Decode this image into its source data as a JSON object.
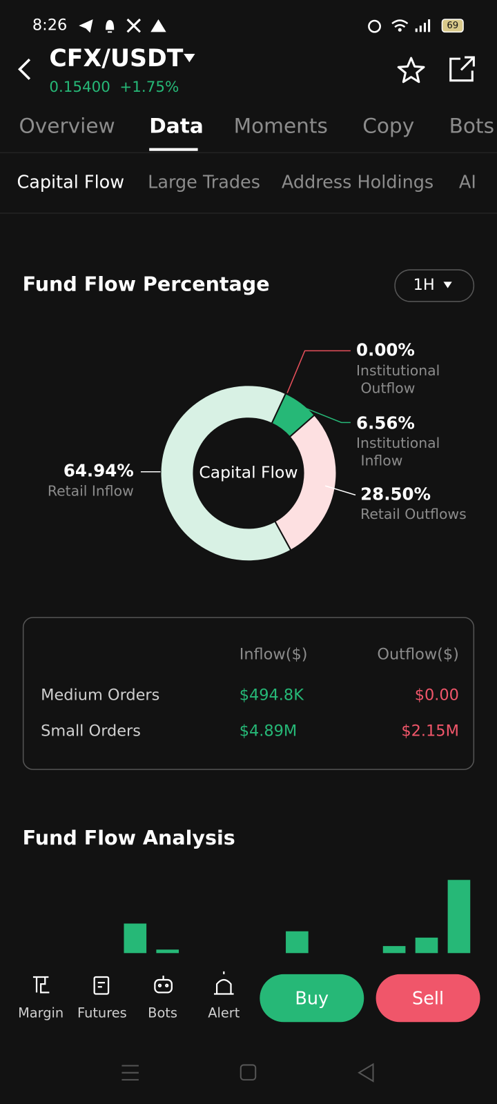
{
  "status_bar": {
    "time": "8:26",
    "battery": "69"
  },
  "header": {
    "pair": "CFX/USDT",
    "price": "0.15400",
    "change": "+1.75%"
  },
  "tabs": [
    "Overview",
    "Data",
    "Moments",
    "Copy",
    "Bots"
  ],
  "sub_tabs": [
    "Capital Flow",
    "Large Trades",
    "Address Holdings",
    "AI"
  ],
  "fund_flow_percentage": {
    "title": "Fund Flow Percentage",
    "period": "1H",
    "chart_data": {
      "type": "pie",
      "center_label": "Capital Flow",
      "categories": [
        "Institutional Outflow",
        "Institutional Inflow",
        "Retail Outflows",
        "Retail Inflow"
      ],
      "values": [
        0.0,
        6.56,
        28.5,
        64.94
      ],
      "value_labels": [
        "0.00%",
        "6.56%",
        "28.50%",
        "64.94%"
      ],
      "colors": [
        "#e8505b",
        "#26b877",
        "#fde0e1",
        "#d8f1e4"
      ]
    }
  },
  "flow_table": {
    "headers": [
      "Inflow($)",
      "Outflow($)"
    ],
    "rows": [
      [
        "Medium Orders",
        "$494.8K",
        "$0.00"
      ],
      [
        "Small Orders",
        "$4.89M",
        "$2.15M"
      ]
    ]
  },
  "fund_flow_analysis": {
    "title": "Fund Flow Analysis",
    "chart_data": {
      "type": "bar",
      "values": [
        0,
        0,
        0,
        42,
        5,
        0,
        0,
        0,
        31,
        0,
        0,
        10,
        22,
        104
      ],
      "color": "#26b877"
    }
  },
  "bottom_nav": {
    "items": [
      "Margin",
      "Futures",
      "Bots",
      "Alert"
    ],
    "buy": "Buy",
    "sell": "Sell"
  }
}
